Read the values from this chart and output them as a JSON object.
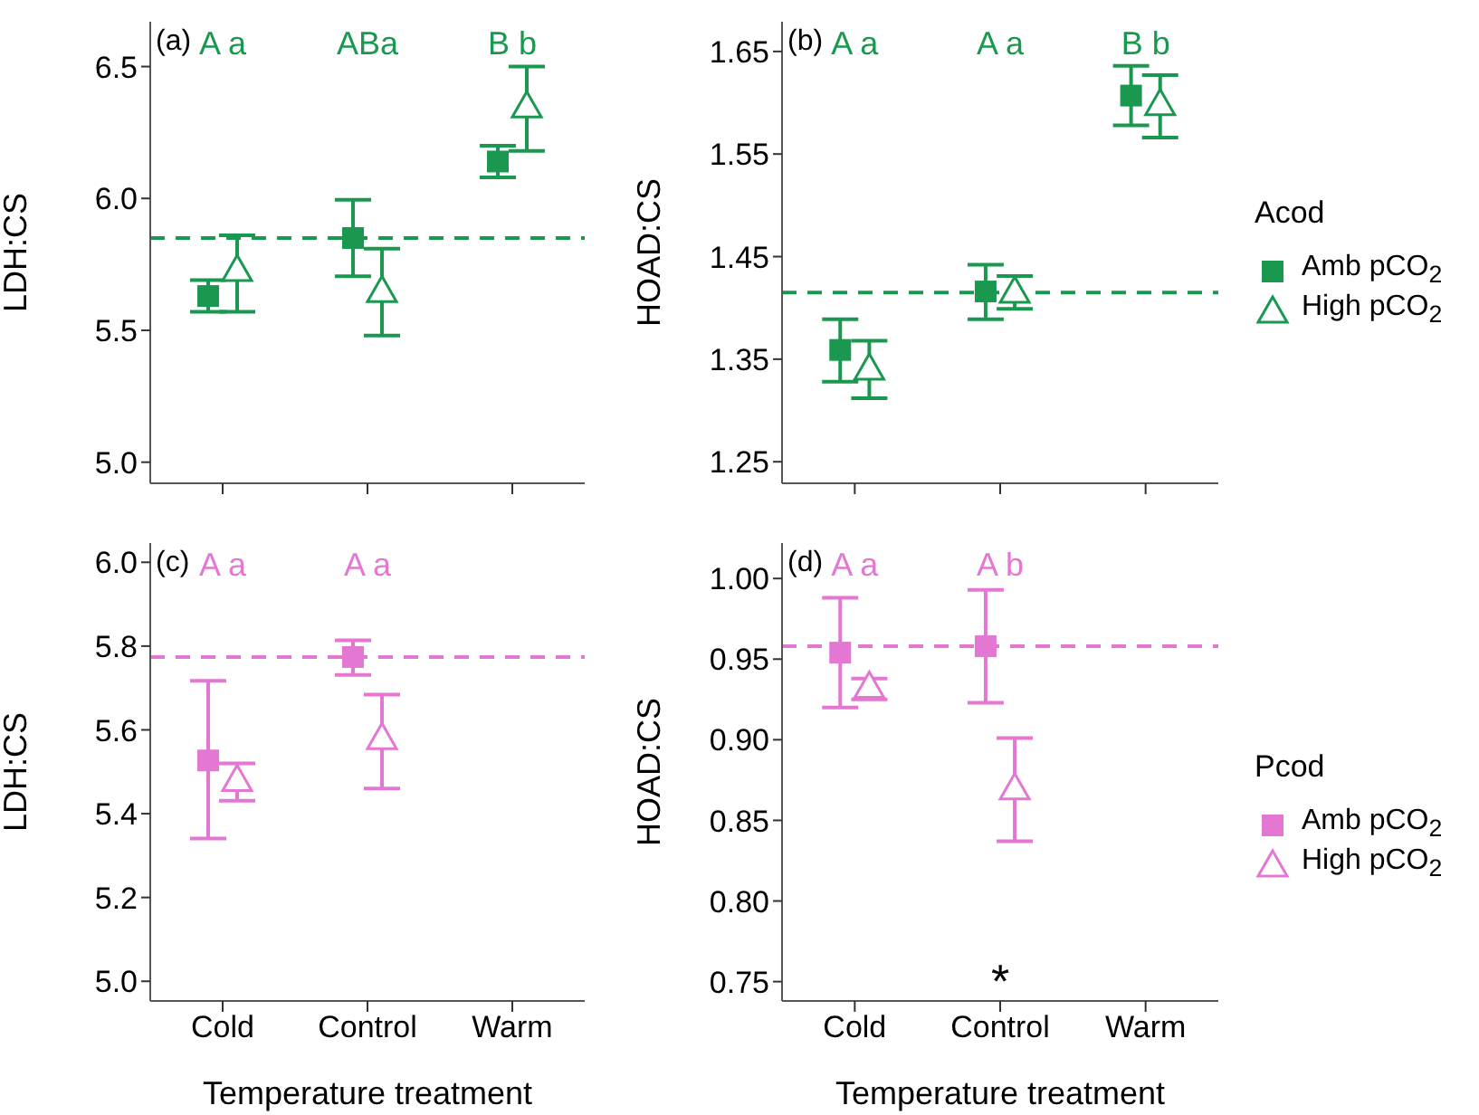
{
  "chart_data": [
    {
      "type": "scatter",
      "title": "(a)",
      "ylabel": "LDH:CS",
      "categories": [
        null,
        null,
        null
      ],
      "ylim": [
        4.92,
        6.67
      ],
      "yticks": [
        {
          "value": 5,
          "label": "5.0"
        },
        {
          "value": 5.5,
          "label": "5.5"
        },
        {
          "value": 6,
          "label": "6.0"
        },
        {
          "value": 6.5,
          "label": "6.5"
        }
      ],
      "tick_labels": "y",
      "legend": false,
      "grid": false,
      "series": [
        {
          "color": "#1a9850",
          "marker": "square",
          "values": [
            5.63,
            5.85,
            6.14
          ],
          "errors": [
            [
              5.57,
              5.69
            ],
            [
              5.705,
              5.995
            ],
            [
              6.08,
              6.2
            ]
          ]
        },
        {
          "color": "#1a9850",
          "marker": "triangle",
          "values": [
            5.73,
            5.65,
            6.35
          ],
          "errors": [
            [
              5.57,
              5.86
            ],
            [
              5.48,
              5.81
            ],
            [
              6.18,
              6.5
            ]
          ]
        }
      ],
      "ref_lines": [
        {
          "axis": "y",
          "value": 5.85,
          "color": "#1a9850",
          "line_style": "dashed"
        }
      ],
      "annotations": [
        "A a",
        "ABa",
        "B b"
      ]
    },
    {
      "type": "scatter",
      "title": "(b)",
      "ylabel": "HOAD:CS",
      "categories": [
        null,
        null,
        null
      ],
      "ylim": [
        1.229,
        1.679
      ],
      "yticks": [
        1.25,
        1.35,
        1.45,
        1.55,
        1.65
      ],
      "tick_labels": "y",
      "legend": "right",
      "legend_title": "Acod",
      "grid": false,
      "series": [
        {
          "name": "Amb pCO$_{2}$",
          "color": "#1a9850",
          "marker": "square",
          "values": [
            1.359,
            1.416,
            1.607
          ],
          "errors": [
            [
              1.328,
              1.389
            ],
            [
              1.389,
              1.442
            ],
            [
              1.578,
              1.636
            ]
          ]
        },
        {
          "name": "High pCO$_{2}$",
          "color": "#1a9850",
          "marker": "triangle",
          "values": [
            1.341,
            1.416,
            1.599
          ],
          "errors": [
            [
              1.312,
              1.368
            ],
            [
              1.399,
              1.431
            ],
            [
              1.566,
              1.627
            ]
          ]
        }
      ],
      "ref_lines": [
        {
          "axis": "y",
          "value": 1.415,
          "color": "#1a9850",
          "line_style": "dashed"
        }
      ],
      "annotations": [
        "A a",
        "A a",
        "B b"
      ]
    },
    {
      "type": "scatter",
      "title": "(c)",
      "ylabel": "LDH:CS",
      "xlabel": "Temperature treatment",
      "categories": [
        "Cold",
        "Control",
        "Warm"
      ],
      "ylim": [
        4.953,
        6.046
      ],
      "yticks": [
        {
          "value": 5,
          "label": "5.0"
        },
        {
          "value": 5.2,
          "label": "5.2"
        },
        {
          "value": 5.4,
          "label": "5.4"
        },
        {
          "value": 5.6,
          "label": "5.6"
        },
        {
          "value": 5.8,
          "label": "5.8"
        },
        {
          "value": 6,
          "label": "6.0"
        }
      ],
      "legend": false,
      "grid": false,
      "series": [
        {
          "color": "#e377d2",
          "marker": "square",
          "values": [
            5.527,
            5.774,
            null
          ],
          "errors": [
            [
              5.341,
              5.717
            ],
            [
              5.731,
              5.814
            ],
            null
          ]
        },
        {
          "color": "#e377d2",
          "marker": "triangle",
          "values": [
            5.481,
            5.581,
            null
          ],
          "errors": [
            [
              5.431,
              5.52
            ],
            [
              5.46,
              5.684
            ],
            null
          ]
        }
      ],
      "ref_lines": [
        {
          "axis": "y",
          "value": 5.774,
          "color": "#e377d2",
          "line_style": "dashed"
        }
      ],
      "annotations": [
        "A a",
        "A a"
      ]
    },
    {
      "type": "scatter",
      "title": "(d)",
      "ylabel": "HOAD:CS",
      "xlabel": "Temperature treatment",
      "categories": [
        "Cold",
        "Control",
        "Warm"
      ],
      "ylim": [
        0.738,
        1.022
      ],
      "yticks": [
        {
          "value": 0.75,
          "label": "0.75"
        },
        {
          "value": 0.8,
          "label": "0.80"
        },
        {
          "value": 0.85,
          "label": "0.85"
        },
        {
          "value": 0.9,
          "label": "0.90"
        },
        {
          "value": 0.95,
          "label": "0.95"
        },
        {
          "value": 1,
          "label": "1.00"
        }
      ],
      "legend": "right",
      "legend_title": "Pcod",
      "grid": false,
      "series": [
        {
          "name": "Amb pCO$_{2}$",
          "color": "#e377d2",
          "marker": "square",
          "values": [
            0.954,
            0.958,
            null
          ],
          "errors": [
            [
              0.92,
              0.988
            ],
            [
              0.923,
              0.993
            ],
            null
          ]
        },
        {
          "name": "High pCO$_{2}$",
          "color": "#e377d2",
          "marker": "triangle",
          "values": [
            0.933,
            0.87,
            null
          ],
          "errors": [
            [
              0.925,
              0.938
            ],
            [
              0.837,
              0.901
            ],
            null
          ]
        }
      ],
      "ref_lines": [
        {
          "axis": "y",
          "value": 0.958,
          "color": "#e377d2",
          "line_style": "dashed"
        }
      ],
      "annotations": [
        "A a",
        "A b",
        "*"
      ]
    }
  ]
}
